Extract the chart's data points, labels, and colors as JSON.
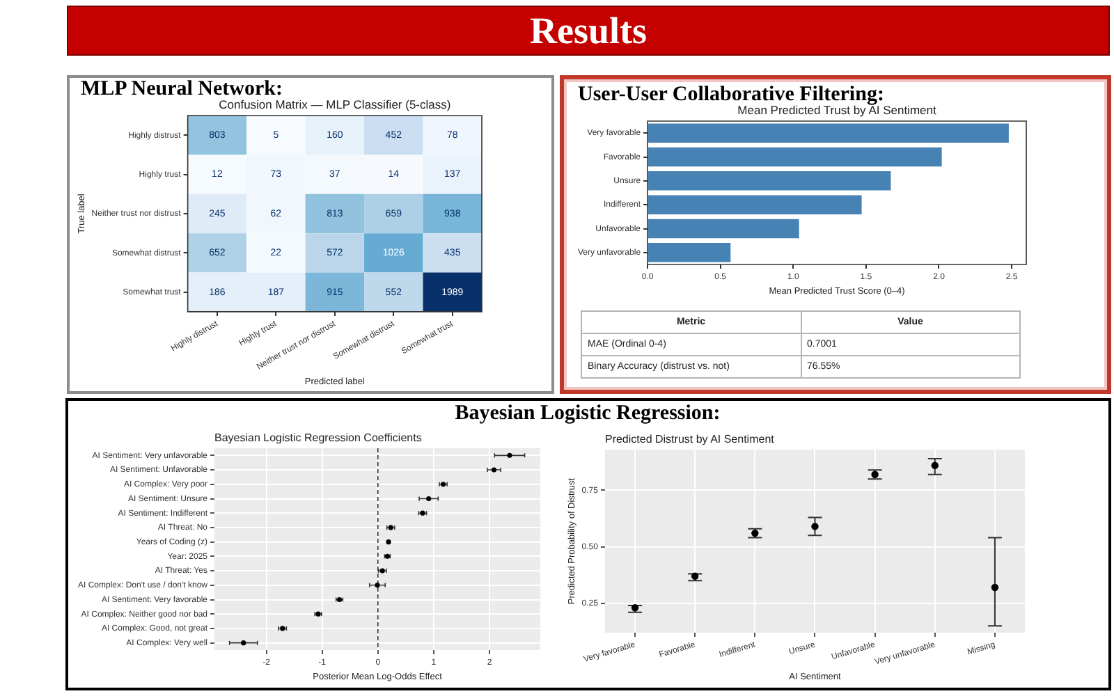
{
  "chart_data": [
    {
      "type": "heatmap",
      "title": "MLP Neural Network:",
      "subtitle": "Confusion Matrix — MLP Classifier (5-class)",
      "xlabel": "Predicted label",
      "ylabel": "True label",
      "categories": [
        "Highly distrust",
        "Highly trust",
        "Neither trust nor distrust",
        "Somewhat distrust",
        "Somewhat trust"
      ],
      "y_categories": [
        "Highly distrust",
        "Highly trust",
        "Neither trust nor distrust",
        "Somewhat distrust",
        "Somewhat trust"
      ],
      "cells": [
        [
          803,
          5,
          160,
          452,
          78
        ],
        [
          12,
          73,
          37,
          14,
          137
        ],
        [
          245,
          62,
          813,
          659,
          938
        ],
        [
          652,
          22,
          572,
          1026,
          435
        ],
        [
          186,
          187,
          915,
          552,
          1989
        ]
      ],
      "data_labels": true,
      "annotations": [
        "Results"
      ]
    },
    {
      "type": "bar",
      "orientation": "horizontal",
      "title": "User-User Collaborative Filtering:",
      "subtitle": "Mean Predicted Trust by AI Sentiment",
      "xlabel": "Mean Predicted Trust Score (0–4)",
      "categories": [
        "Very favorable",
        "Favorable",
        "Unsure",
        "Indifferent",
        "Unfavorable",
        "Very unfavorable"
      ],
      "values": [
        2.48,
        2.02,
        1.67,
        1.47,
        1.04,
        0.57
      ],
      "color": "#4682b4",
      "xlim": [
        0,
        2.6
      ],
      "xticks": [
        {
          "value": 0,
          "label": "0.0"
        },
        {
          "value": 0.5,
          "label": "0.5"
        },
        {
          "value": 1,
          "label": "1.0"
        },
        {
          "value": 1.5,
          "label": "1.5"
        },
        {
          "value": 2,
          "label": "2.0"
        },
        {
          "value": 2.5,
          "label": "2.5"
        }
      ]
    },
    {
      "type": "other",
      "annotations": [
        "Metric",
        "Value",
        "MAE (Ordinal 0-4)",
        "0.7001",
        "Binary Accuracy (distrust vs. not)",
        "76.55%"
      ]
    },
    {
      "type": "scatter",
      "orientation": "horizontal",
      "title": "Bayesian Logistic Regression:",
      "subtitle": "Bayesian Logistic Regression Coefficients",
      "xlabel": "Posterior Mean Log-Odds Effect",
      "categories": [
        "AI Sentiment: Very unfavorable",
        "AI Sentiment: Unfavorable",
        "AI Complex: Very poor",
        "AI Sentiment: Unsure",
        "AI Sentiment: Indifferent",
        "AI Threat: No",
        "Years of Coding (z)",
        "Year: 2025",
        "AI Threat: Yes",
        "AI Complex: Don't use / don't know",
        "AI Sentiment: Very favorable",
        "AI Complex: Neither good nor bad",
        "AI Complex: Good, not great",
        "AI Complex: Very well"
      ],
      "values": [
        2.36,
        2.08,
        1.17,
        0.91,
        0.8,
        0.23,
        0.19,
        0.17,
        0.08,
        -0.01,
        -0.69,
        -1.07,
        -1.71,
        -2.41
      ],
      "errors": [
        0.27,
        0.12,
        0.07,
        0.17,
        0.07,
        0.07,
        0.02,
        0.05,
        0.07,
        0.14,
        0.06,
        0.06,
        0.07,
        0.25
      ],
      "color": "#000000",
      "marker": "circle",
      "xlim": [
        -2.93,
        2.91
      ],
      "xticks": [
        -2,
        -1,
        0,
        1,
        2
      ],
      "grid": true,
      "ref_lines": [
        {
          "axis": "x",
          "value": 0,
          "line_style": "dashed"
        }
      ]
    },
    {
      "type": "scatter",
      "title": "Predicted Distrust by AI Sentiment",
      "xlabel": "AI Sentiment",
      "ylabel": "Predicted Probability of Distrust",
      "categories": [
        "Very favorable",
        "Favorable",
        "Indifferent",
        "Unsure",
        "Unfavorable",
        "Very unfavorable",
        "Missing"
      ],
      "values": [
        0.23,
        0.37,
        0.56,
        0.59,
        0.82,
        0.86,
        0.32
      ],
      "errors": [
        [
          0.21,
          0.24
        ],
        [
          0.35,
          0.38
        ],
        [
          0.54,
          0.58
        ],
        [
          0.55,
          0.63
        ],
        [
          0.8,
          0.84
        ],
        [
          0.82,
          0.89
        ],
        [
          0.15,
          0.54
        ]
      ],
      "color": "#000000",
      "marker": "circle",
      "ylim": [
        0.12,
        0.93
      ],
      "yticks": [
        {
          "value": 0.25,
          "label": "0.25"
        },
        {
          "value": 0.5,
          "label": "0.50"
        },
        {
          "value": 0.75,
          "label": "0.75"
        }
      ],
      "grid": true
    }
  ]
}
